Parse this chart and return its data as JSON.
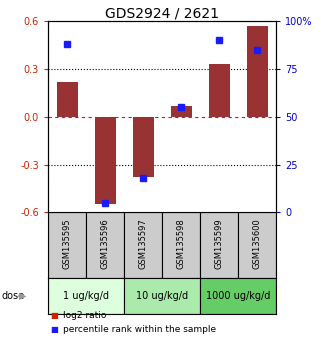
{
  "title": "GDS2924 / 2621",
  "samples": [
    "GSM135595",
    "GSM135596",
    "GSM135597",
    "GSM135598",
    "GSM135599",
    "GSM135600"
  ],
  "log2_ratio": [
    0.22,
    -0.55,
    -0.38,
    0.07,
    0.33,
    0.57
  ],
  "percentile_rank": [
    88,
    5,
    18,
    55,
    90,
    85
  ],
  "ylim_left": [
    -0.6,
    0.6
  ],
  "ylim_right": [
    0,
    100
  ],
  "yticks_left": [
    -0.6,
    -0.3,
    0.0,
    0.3,
    0.6
  ],
  "yticks_right": [
    0,
    25,
    50,
    75,
    100
  ],
  "ytick_labels_right": [
    "0",
    "25",
    "50",
    "75",
    "100%"
  ],
  "hlines": [
    -0.3,
    0.0,
    0.3
  ],
  "hline_colors": [
    "black",
    "red",
    "black"
  ],
  "hline_styles": [
    "dotted",
    "dotted",
    "dotted"
  ],
  "hline_dashes": [
    [
      2,
      2
    ],
    null,
    [
      2,
      2
    ]
  ],
  "bar_color": "#993333",
  "dot_color": "#1a1aff",
  "dose_groups": [
    {
      "label": "1 ug/kg/d",
      "samples": [
        0,
        1
      ],
      "color": "#ddffdd"
    },
    {
      "label": "10 ug/kg/d",
      "samples": [
        2,
        3
      ],
      "color": "#aaeaaa"
    },
    {
      "label": "1000 ug/kg/d",
      "samples": [
        4,
        5
      ],
      "color": "#66cc66"
    }
  ],
  "dose_label": "dose",
  "legend_items": [
    {
      "color": "#cc2200",
      "label": "log2 ratio"
    },
    {
      "color": "#1a1aff",
      "label": "percentile rank within the sample"
    }
  ],
  "sample_box_color": "#cccccc",
  "left_axis_color": "#cc2200",
  "right_axis_color": "#0000cc",
  "title_fontsize": 10,
  "tick_fontsize": 7,
  "sample_fontsize": 6,
  "dose_fontsize": 7,
  "legend_fontsize": 6.5
}
